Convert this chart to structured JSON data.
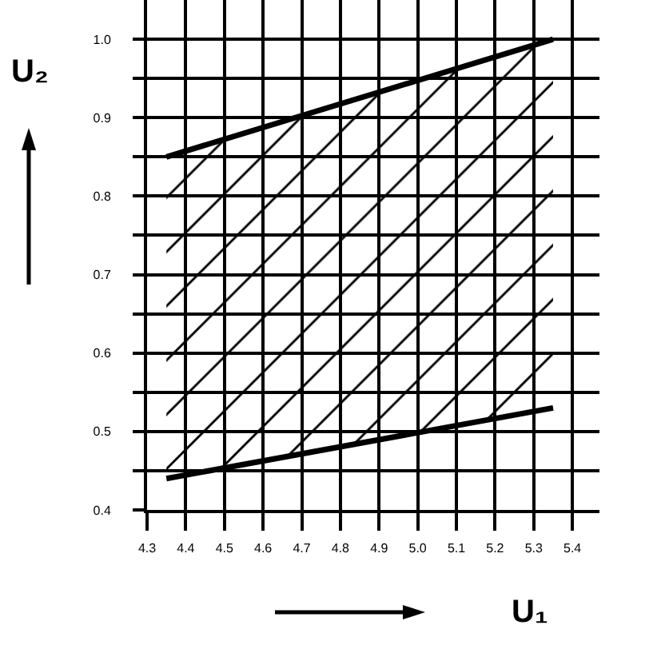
{
  "chart_data": {
    "type": "line",
    "xlabel": "U₁",
    "ylabel": "U₂",
    "x": [
      4.35,
      5.35
    ],
    "xlim": [
      4.3,
      5.47
    ],
    "ylim": [
      0.4,
      1.05
    ],
    "xticks": [
      4.3,
      4.4,
      4.5,
      4.6,
      4.7,
      4.8,
      4.9,
      {
        "value": 5,
        "label": "5.0"
      },
      5.1,
      5.2,
      5.3,
      5.4
    ],
    "yticks": [
      0.4,
      {
        "value": 0.45,
        "label": null
      },
      0.5,
      {
        "value": 0.55,
        "label": null
      },
      0.6,
      {
        "value": 0.65,
        "label": null
      },
      0.7,
      {
        "value": 0.75,
        "label": null
      },
      0.8,
      {
        "value": 0.85,
        "label": null
      },
      0.9,
      {
        "value": 0.95,
        "label": null
      },
      {
        "value": 1,
        "label": "1.0"
      }
    ],
    "grid": true,
    "series": [
      {
        "color": "#000000",
        "values": [
          0.85,
          1.0
        ]
      },
      {
        "color": "#000000",
        "values": [
          0.44,
          0.53
        ],
        "lower": [
          0.44,
          0.53
        ],
        "upper": [
          0.85,
          1.0
        ]
      }
    ]
  }
}
